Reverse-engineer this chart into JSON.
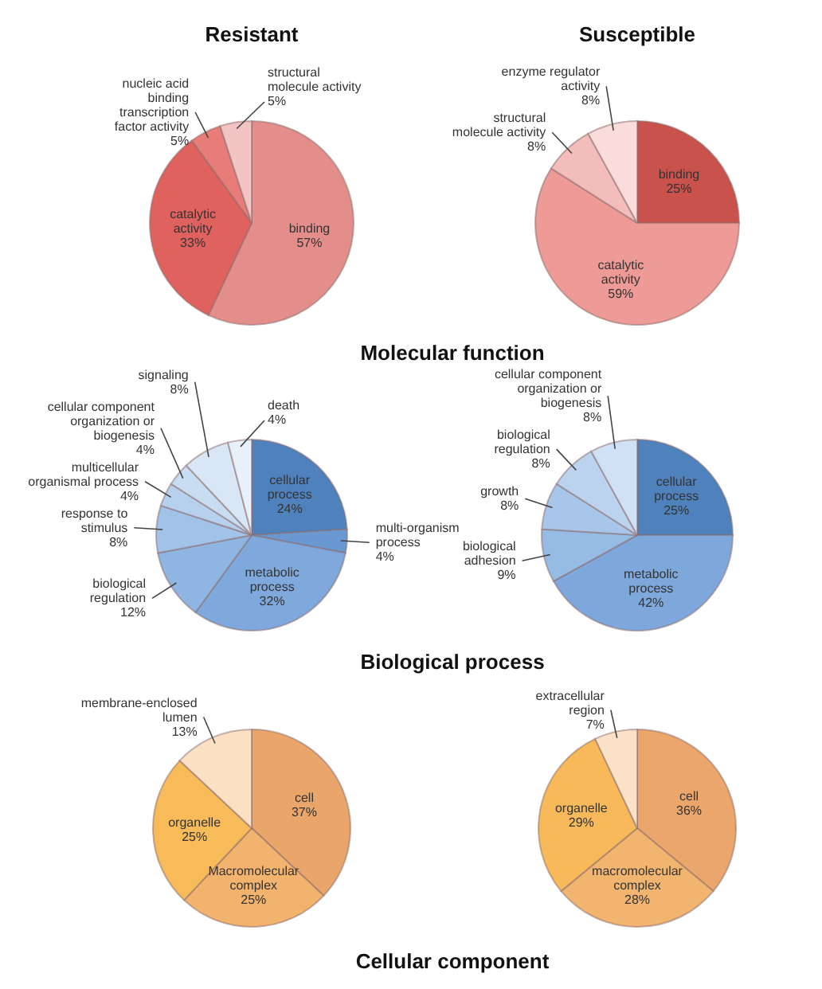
{
  "chart_data": [
    {
      "type": "pie",
      "title": "Resistant",
      "annotations": [
        "Molecular function"
      ],
      "categories": [
        "binding",
        "catalytic activity",
        "nucleic acid binding transcription factor activity",
        "structural molecule activity"
      ],
      "values": [
        57,
        33,
        5,
        5
      ],
      "value_labels": [
        "57%",
        "33%",
        "5%",
        "5%"
      ],
      "colors": [
        "#e48e8c",
        "#e0625e",
        "#e87c78",
        "#f2c4c3"
      ]
    },
    {
      "type": "pie",
      "title": "Susceptible",
      "categories": [
        "binding",
        "catalytic activity",
        "structural molecule activity",
        "enzyme regulator activity"
      ],
      "values": [
        25,
        59,
        8,
        8
      ],
      "value_labels": [
        "25%",
        "59%",
        "8%",
        "8%"
      ],
      "colors": [
        "#c9524c",
        "#ee9a97",
        "#f3bdbb",
        "#f9dcdb"
      ]
    },
    {
      "type": "pie",
      "annotations": [
        "Biological process"
      ],
      "categories": [
        "cellular process",
        "multi-organism process",
        "metabolic process",
        "biological regulation",
        "response to stimulus",
        "multicellular organismal process",
        "cellular component organization or biogenesis",
        "signaling",
        "death"
      ],
      "values": [
        24,
        4,
        32,
        12,
        8,
        4,
        4,
        8,
        4
      ],
      "value_labels": [
        "24%",
        "4%",
        "32%",
        "12%",
        "8%",
        "4%",
        "4%",
        "8%",
        "4%"
      ],
      "colors": [
        "#4f81bd",
        "#6a98d0",
        "#7fa9dc",
        "#8fb6e2",
        "#a2c3e8",
        "#b6d0ee",
        "#c8dcf2",
        "#d8e6f6",
        "#e8f0fa"
      ]
    },
    {
      "type": "pie",
      "categories": [
        "cellular process",
        "metabolic process",
        "biological adhesion",
        "growth",
        "biological regulation",
        "cellular component organization or biogenesis"
      ],
      "values": [
        25,
        42,
        9,
        8,
        8,
        8
      ],
      "value_labels": [
        "25%",
        "42%",
        "9%",
        "8%",
        "8%",
        "8%"
      ],
      "colors": [
        "#4f81bd",
        "#7ea8dc",
        "#96bbe5",
        "#a8c6ea",
        "#bcd3f0",
        "#d0e0f5"
      ]
    },
    {
      "type": "pie",
      "annotations": [
        "Cellular component"
      ],
      "categories": [
        "cell",
        "Macromolecular complex",
        "organelle",
        "membrane-enclosed lumen"
      ],
      "values": [
        37,
        25,
        25,
        13
      ],
      "value_labels": [
        "37%",
        "25%",
        "25%",
        "13%"
      ],
      "colors": [
        "#e9a56a",
        "#f2b36e",
        "#f8bb5a",
        "#fbe0c4"
      ]
    },
    {
      "type": "pie",
      "categories": [
        "cell",
        "macromolecular complex",
        "organelle",
        "extracellular region"
      ],
      "values": [
        36,
        28,
        29,
        7
      ],
      "value_labels": [
        "36%",
        "28%",
        "29%",
        "7%"
      ],
      "colors": [
        "#eba66c",
        "#f2b570",
        "#f7b95a",
        "#fbe2c6"
      ]
    }
  ]
}
